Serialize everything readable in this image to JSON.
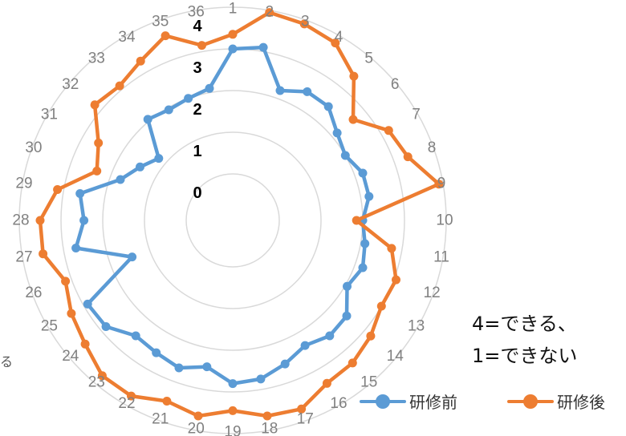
{
  "chart_data": {
    "type": "radar",
    "categories": [
      "1",
      "2",
      "3",
      "4",
      "5",
      "6",
      "7",
      "8",
      "9",
      "10",
      "11",
      "12",
      "13",
      "14",
      "15",
      "16",
      "17",
      "18",
      "19",
      "20",
      "21",
      "22",
      "23",
      "24",
      "25",
      "26",
      "27",
      "28",
      "29",
      "30",
      "31",
      "32",
      "33",
      "34",
      "35",
      "36"
    ],
    "rings": [
      "0",
      "1",
      "2",
      "3",
      "4"
    ],
    "rlim": [
      0,
      4
    ],
    "grid": true,
    "legend_position": "bottom-right",
    "series": [
      {
        "name": "研修前",
        "color": "#5B9BD5",
        "values": [
          3.0,
          3.1,
          2.2,
          2.45,
          2.45,
          2.15,
          2.0,
          2.2,
          2.2,
          2.0,
          2.1,
          2.2,
          2.05,
          2.45,
          2.5,
          2.35,
          2.55,
          2.75,
          2.8,
          2.45,
          2.65,
          2.55,
          2.5,
          2.85,
          2.9,
          1.45,
          2.7,
          2.45,
          2.6,
          1.75,
          1.45,
          1.2,
          2.05,
          1.95,
          2.0,
          2.1
        ]
      },
      {
        "name": "研修後",
        "color": "#ED7D31",
        "values": [
          3.35,
          3.95,
          3.9,
          3.8,
          3.4,
          2.65,
          3.2,
          3.35,
          3.9,
          1.85,
          2.75,
          3.05,
          3.0,
          3.2,
          3.35,
          3.4,
          3.7,
          3.65,
          3.45,
          3.65,
          3.5,
          3.75,
          3.75,
          3.5,
          3.35,
          3.15,
          3.5,
          3.5,
          3.15,
          2.35,
          2.6,
          3.2,
          3.1,
          3.3,
          3.6,
          3.15
        ]
      }
    ]
  },
  "note": {
    "line1": "4=できる、",
    "line2": "1=できない"
  },
  "edge_mark": "る"
}
